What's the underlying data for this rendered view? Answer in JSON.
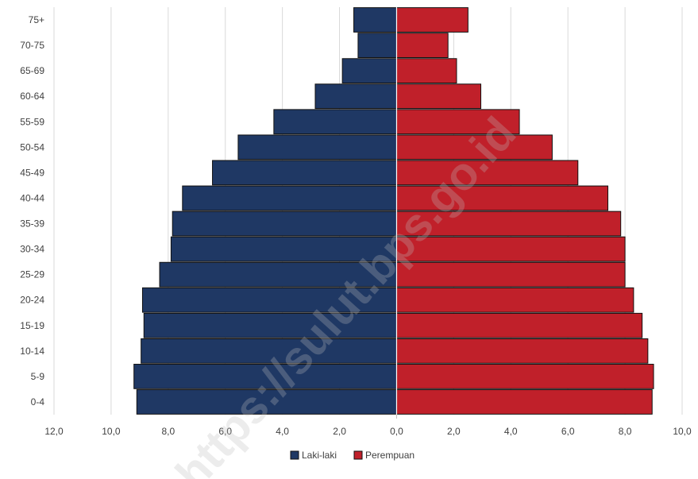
{
  "chart_data": {
    "type": "bar",
    "orientation": "horizontal",
    "layout": "population-pyramid",
    "categories": [
      "0-4",
      "5-9",
      "10-14",
      "15-19",
      "20-24",
      "25-29",
      "30-34",
      "35-39",
      "40-44",
      "45-49",
      "50-54",
      "55-59",
      "60-64",
      "65-69",
      "70-75",
      "75+"
    ],
    "series": [
      {
        "name": "Laki-laki",
        "color": "#1f3864",
        "values": [
          9.1,
          9.2,
          8.95,
          8.85,
          8.9,
          8.3,
          7.9,
          7.85,
          7.5,
          6.45,
          5.55,
          4.3,
          2.85,
          1.9,
          1.35,
          1.5
        ]
      },
      {
        "name": "Perempuan",
        "color": "#c0202a",
        "values": [
          8.95,
          9.0,
          8.8,
          8.6,
          8.3,
          8.0,
          8.0,
          7.85,
          7.4,
          6.35,
          5.45,
          4.3,
          2.95,
          2.1,
          1.8,
          2.5
        ]
      }
    ],
    "x_tick_labels": [
      "12,0",
      "10,0",
      "8,0",
      "6,0",
      "4,0",
      "2,0",
      "0,0",
      "2,0",
      "4,0",
      "6,0",
      "8,0",
      "10,0"
    ],
    "xlim": [
      -12,
      10
    ],
    "grid": true,
    "legend_position": "bottom"
  },
  "watermark": "https://sulut.bps.go.id"
}
